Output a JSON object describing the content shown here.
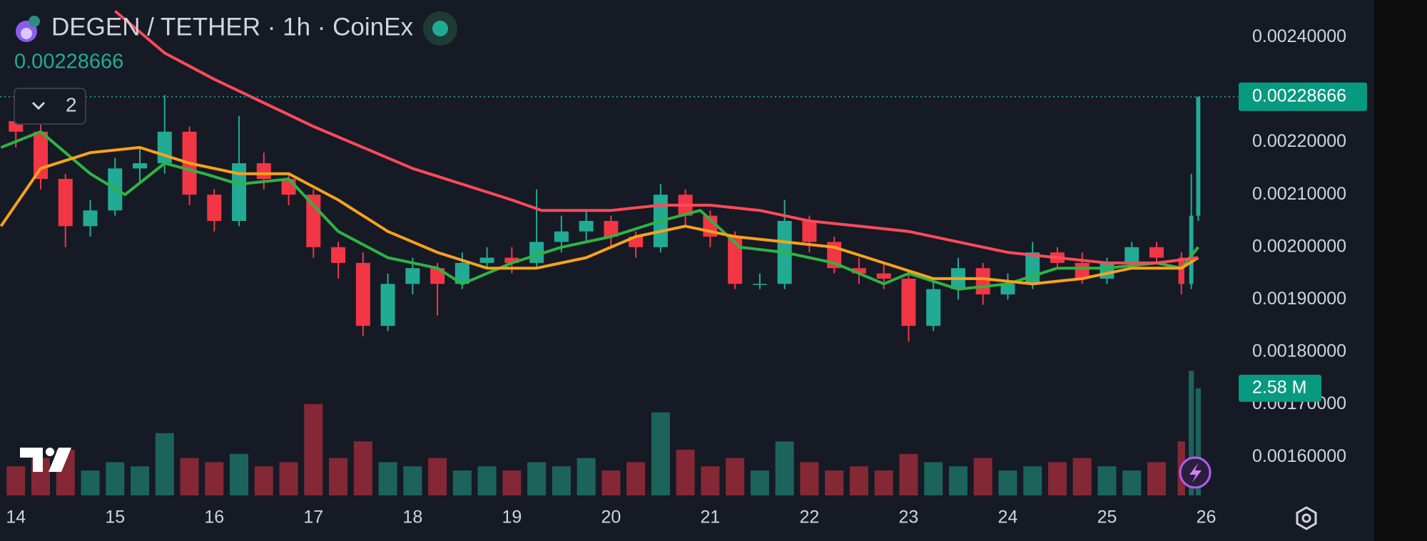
{
  "chart_data": {
    "type": "candlestick",
    "title": "DEGEN / TETHER · 1h · CoinEx",
    "last_price": 0.00228666,
    "indicator_count": 2,
    "xlim": [
      13.84,
      26.32
    ],
    "xticks": [
      14,
      15,
      16,
      17,
      18,
      19,
      20,
      21,
      22,
      23,
      24,
      25,
      26
    ],
    "ylim": [
      0.001527,
      0.002471
    ],
    "yticks": [
      {
        "value": 0.0016,
        "label": "0.00160000"
      },
      {
        "value": 0.0017,
        "label": "0.00170000"
      },
      {
        "value": 0.0018,
        "label": "0.00180000"
      },
      {
        "value": 0.0019,
        "label": "0.00190000"
      },
      {
        "value": 0.002,
        "label": "0.00200000"
      },
      {
        "value": 0.0021,
        "label": "0.00210000"
      },
      {
        "value": 0.0022,
        "label": "0.00220000"
      },
      {
        "value": 0.0024,
        "label": "0.00240000"
      }
    ],
    "vlim": [
      0,
      3.4
    ],
    "up_color": "#22ab94",
    "down_color": "#f23645",
    "candles": {
      "x": [
        14,
        14.25,
        14.5,
        14.75,
        15,
        15.25,
        15.5,
        15.75,
        16,
        16.25,
        16.5,
        16.75,
        17,
        17.25,
        17.5,
        17.75,
        18,
        18.25,
        18.5,
        18.75,
        19,
        19.25,
        19.5,
        19.75,
        20,
        20.25,
        20.5,
        20.75,
        21,
        21.25,
        21.5,
        21.75,
        22,
        22.25,
        22.5,
        22.75,
        23,
        23.25,
        23.5,
        23.75,
        24,
        24.25,
        24.5,
        24.75,
        25,
        25.25,
        25.5,
        25.75,
        25.85,
        25.92
      ],
      "open": [
        0.00224,
        0.00222,
        0.00213,
        0.00204,
        0.00207,
        0.00215,
        0.00216,
        0.00222,
        0.0021,
        0.00205,
        0.00216,
        0.00213,
        0.0021,
        0.002,
        0.00197,
        0.00185,
        0.00193,
        0.00196,
        0.00193,
        0.00197,
        0.00198,
        0.00197,
        0.00201,
        0.00203,
        0.00205,
        0.00202,
        0.002,
        0.0021,
        0.00206,
        0.00202,
        0.00193,
        0.00193,
        0.00205,
        0.00201,
        0.00196,
        0.00195,
        0.00194,
        0.00185,
        0.00192,
        0.00196,
        0.00191,
        0.00193,
        0.00199,
        0.00197,
        0.00194,
        0.00197,
        0.002,
        0.00198,
        0.00193,
        0.00206
      ],
      "high": [
        0.00229,
        0.00224,
        0.00214,
        0.00209,
        0.00217,
        0.00219,
        0.00229,
        0.00223,
        0.00211,
        0.00225,
        0.00218,
        0.00214,
        0.00211,
        0.00201,
        0.00199,
        0.00195,
        0.00198,
        0.00197,
        0.00199,
        0.002,
        0.002,
        0.00211,
        0.00206,
        0.00207,
        0.00206,
        0.00203,
        0.00212,
        0.00211,
        0.00207,
        0.00203,
        0.00195,
        0.00209,
        0.00206,
        0.00202,
        0.00198,
        0.00197,
        0.00195,
        0.00194,
        0.00198,
        0.00197,
        0.00195,
        0.00201,
        0.002,
        0.00199,
        0.00198,
        0.00201,
        0.00201,
        0.00199,
        0.00214,
        0.00228666
      ],
      "low": [
        0.00219,
        0.00211,
        0.002,
        0.00202,
        0.00206,
        0.00212,
        0.00214,
        0.00208,
        0.00203,
        0.00204,
        0.00211,
        0.00208,
        0.00198,
        0.00194,
        0.00183,
        0.00184,
        0.00191,
        0.00187,
        0.00192,
        0.00196,
        0.00195,
        0.00196,
        0.00199,
        0.00201,
        0.002,
        0.00198,
        0.00199,
        0.00204,
        0.002,
        0.00192,
        0.00192,
        0.00192,
        0.00199,
        0.00195,
        0.00193,
        0.00192,
        0.00182,
        0.00184,
        0.0019,
        0.00189,
        0.0019,
        0.00192,
        0.00196,
        0.00193,
        0.00193,
        0.00196,
        0.00197,
        0.00191,
        0.00192,
        0.00205
      ],
      "close": [
        0.00222,
        0.00213,
        0.00204,
        0.00207,
        0.00215,
        0.00216,
        0.00222,
        0.0021,
        0.00205,
        0.00216,
        0.00213,
        0.0021,
        0.002,
        0.00197,
        0.00185,
        0.00193,
        0.00196,
        0.00193,
        0.00197,
        0.00198,
        0.00197,
        0.00201,
        0.00203,
        0.00205,
        0.00202,
        0.002,
        0.0021,
        0.00206,
        0.00202,
        0.00193,
        0.00193,
        0.00205,
        0.00201,
        0.00196,
        0.00195,
        0.00194,
        0.00185,
        0.00192,
        0.00196,
        0.00191,
        0.00193,
        0.00199,
        0.00197,
        0.00194,
        0.00197,
        0.002,
        0.00198,
        0.00193,
        0.00206,
        0.00228666
      ],
      "volume": [
        0.7,
        0.9,
        1.1,
        0.6,
        0.8,
        0.7,
        1.5,
        0.9,
        0.8,
        1.0,
        0.7,
        0.8,
        2.2,
        0.9,
        1.3,
        0.8,
        0.7,
        0.9,
        0.6,
        0.7,
        0.6,
        0.8,
        0.7,
        0.9,
        0.6,
        0.8,
        2.0,
        1.1,
        0.7,
        0.9,
        0.6,
        1.3,
        0.8,
        0.6,
        0.7,
        0.6,
        1.0,
        0.8,
        0.7,
        0.9,
        0.6,
        0.7,
        0.8,
        0.9,
        0.7,
        0.6,
        0.8,
        1.3,
        3.0,
        2.58
      ],
      "volume_label": "2.58 M"
    },
    "moving_averages": [
      {
        "color": "#2fb344",
        "x": [
          13.85,
          14.25,
          14.75,
          15.1,
          15.5,
          15.9,
          16.25,
          16.75,
          17.25,
          17.75,
          18.25,
          18.5,
          19,
          19.5,
          20,
          20.5,
          20.9,
          21.3,
          21.75,
          22.25,
          22.75,
          23,
          23.5,
          24,
          24.5,
          25,
          25.5,
          25.75,
          25.92
        ],
        "values": [
          0.00219,
          0.00222,
          0.00214,
          0.0021,
          0.00216,
          0.00214,
          0.00212,
          0.00213,
          0.00203,
          0.00198,
          0.00196,
          0.00193,
          0.00197,
          0.002,
          0.00202,
          0.00205,
          0.00207,
          0.002,
          0.00199,
          0.00197,
          0.00193,
          0.00195,
          0.00192,
          0.00193,
          0.00196,
          0.00196,
          0.00197,
          0.00196,
          0.002
        ]
      },
      {
        "color": "#f7a21b",
        "x": [
          13.85,
          14.25,
          14.75,
          15.25,
          15.75,
          16.25,
          16.75,
          17.25,
          17.75,
          18.25,
          18.75,
          19.25,
          19.75,
          20.25,
          20.75,
          21.25,
          21.75,
          22.25,
          22.75,
          23.25,
          23.75,
          24.25,
          24.75,
          25.25,
          25.75,
          25.92
        ],
        "values": [
          0.00204,
          0.00215,
          0.00218,
          0.00219,
          0.00216,
          0.00214,
          0.00214,
          0.00209,
          0.00203,
          0.00199,
          0.00196,
          0.00196,
          0.00198,
          0.00202,
          0.00204,
          0.00202,
          0.00201,
          0.002,
          0.00197,
          0.00194,
          0.00194,
          0.00193,
          0.00194,
          0.00196,
          0.00196,
          0.00198
        ]
      },
      {
        "color": "#ff4a5a",
        "x": [
          15,
          15.5,
          16,
          17,
          18,
          19,
          19.3,
          20,
          20.5,
          21,
          21.5,
          22,
          22.5,
          23,
          23.5,
          24,
          24.5,
          25,
          25.5,
          25.92
        ],
        "values": [
          0.00245,
          0.00237,
          0.00232,
          0.00223,
          0.00215,
          0.00209,
          0.00207,
          0.00207,
          0.00208,
          0.00208,
          0.00207,
          0.00205,
          0.00204,
          0.00203,
          0.00201,
          0.00199,
          0.00198,
          0.00197,
          0.00197,
          0.00198
        ]
      }
    ]
  }
}
